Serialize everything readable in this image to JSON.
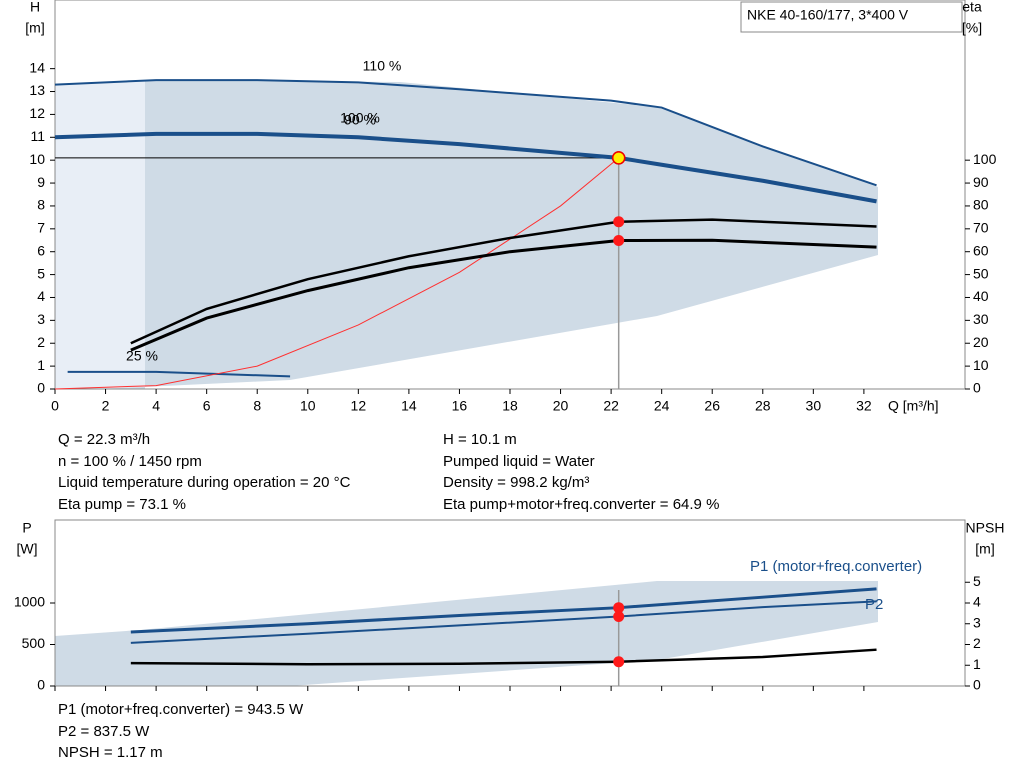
{
  "chart_data": [
    {
      "type": "line",
      "title": "NKE 40-160/177, 3*400 V",
      "ylabel": "H",
      "ylabel_unit": "[m]",
      "y2label": "eta",
      "y2label_unit": "[%]",
      "xlabel": "Q [m³/h]",
      "xlim": [
        0,
        36
      ],
      "xticks": [
        0,
        2,
        4,
        6,
        8,
        10,
        12,
        14,
        16,
        18,
        20,
        22,
        24,
        26,
        28,
        30,
        32
      ],
      "ylim": [
        0,
        17
      ],
      "yticks": [
        0,
        1,
        2,
        3,
        4,
        5,
        6,
        7,
        8,
        9,
        10,
        11,
        12,
        13,
        14
      ],
      "y2lim": [
        0,
        170
      ],
      "y2ticks": [
        0,
        10,
        20,
        30,
        40,
        50,
        60,
        70,
        80,
        90,
        100
      ],
      "operating_point": {
        "x": 22.3,
        "y": 10.1
      },
      "annotations": [
        "110 %",
        "100 %",
        "90 %",
        "25 %"
      ],
      "series": [
        {
          "color": "#1a4f8a",
          "width": 2,
          "x": [
            0,
            4,
            8,
            12,
            16,
            22,
            24,
            28,
            32.5
          ],
          "values": [
            13.3,
            13.5,
            13.5,
            13.4,
            13.1,
            12.6,
            12.3,
            10.6,
            8.9
          ]
        },
        {
          "color": "#1a4f8a",
          "width": 4,
          "x": [
            0,
            4,
            8,
            12,
            16,
            22.3,
            24,
            28,
            32.5
          ],
          "values": [
            11.0,
            11.15,
            11.15,
            11.0,
            10.7,
            10.1,
            9.8,
            9.1,
            8.2
          ]
        },
        {
          "color": "#1a4f8a",
          "width": 2,
          "x": [
            0.5,
            4,
            9.3
          ],
          "values": [
            0.75,
            0.75,
            0.55
          ]
        },
        {
          "color": "#ff3030",
          "width": 1,
          "x": [
            0,
            4,
            8,
            12,
            16,
            20,
            22.3
          ],
          "values": [
            0,
            0.15,
            1.0,
            2.8,
            5.1,
            8.0,
            10.1
          ]
        },
        {
          "color": "#000000",
          "width": 2.5,
          "axis": "y2",
          "x": [
            3,
            6,
            10,
            14,
            18,
            22.3,
            26,
            32.5
          ],
          "values": [
            20,
            35,
            48,
            58,
            66,
            73.1,
            74,
            71
          ]
        },
        {
          "color": "#000000",
          "width": 3,
          "axis": "y2",
          "x": [
            3,
            6,
            10,
            14,
            18,
            22.3,
            26,
            32.5
          ],
          "values": [
            17,
            31,
            43,
            53,
            60,
            64.9,
            65,
            62
          ]
        }
      ],
      "info": [
        "Q = 22.3 m³/h",
        "n = 100 % / 1450 rpm",
        "Liquid temperature during operation = 20 °C",
        "Eta pump = 73.1 %",
        "H = 10.1 m",
        "Pumped liquid = Water",
        "Density = 998.2 kg/m³",
        "Eta pump+motor+freq.converter = 64.9 %"
      ]
    },
    {
      "type": "line",
      "ylabel": "P",
      "ylabel_unit": "[W]",
      "y2label": "NPSH",
      "y2label_unit": "[m]",
      "xlim": [
        0,
        36
      ],
      "xticks": [
        0,
        2,
        4,
        6,
        8,
        10,
        12,
        14,
        16,
        18,
        20,
        22,
        24,
        26,
        28,
        30,
        32
      ],
      "ylim": [
        0,
        2000
      ],
      "yticks": [
        0,
        500,
        1000
      ],
      "y2lim": [
        0,
        8
      ],
      "y2ticks": [
        0,
        1,
        2,
        3,
        4,
        5
      ],
      "operating_point": {
        "x": 22.3
      },
      "series": [
        {
          "name": "P1 (motor+freq.converter)",
          "color": "#1a4f8a",
          "width": 3,
          "x": [
            3,
            10,
            16,
            22.3,
            28,
            32.5
          ],
          "values": [
            650,
            750,
            850,
            943.5,
            1070,
            1170
          ]
        },
        {
          "name": "P2",
          "color": "#1a4f8a",
          "width": 2,
          "x": [
            3,
            10,
            16,
            22.3,
            28,
            32.5
          ],
          "values": [
            520,
            630,
            730,
            837.5,
            950,
            1020
          ]
        },
        {
          "color": "#000000",
          "width": 2.5,
          "axis": "y2",
          "x": [
            3,
            10,
            16,
            22.3,
            28,
            32.5
          ],
          "values": [
            1.1,
            1.05,
            1.07,
            1.17,
            1.4,
            1.75
          ]
        }
      ],
      "info": [
        "P1 (motor+freq.converter) = 943.5 W",
        "P2 = 837.5 W",
        "NPSH = 1.17 m"
      ]
    }
  ]
}
